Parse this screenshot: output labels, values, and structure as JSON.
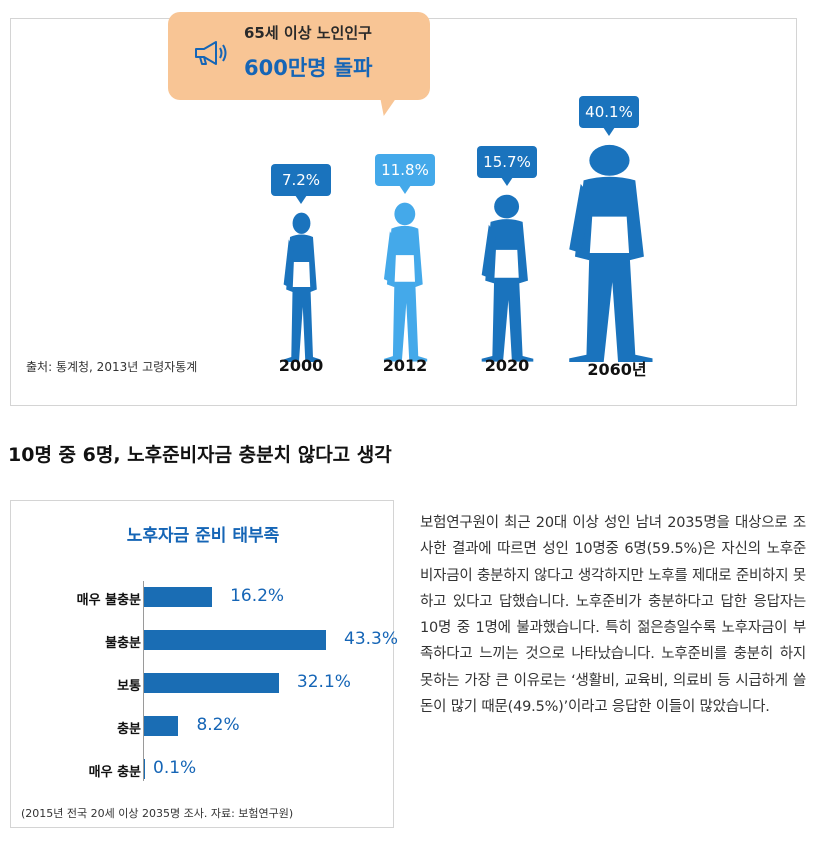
{
  "top_chart": {
    "callout": {
      "line1": "65세 이상 노인인구",
      "line2": "600만명 돌파"
    },
    "source": "출처: 통계청, 2013년 고령자통계",
    "chart_data": {
      "type": "bar",
      "categories": [
        "2000",
        "2012",
        "2020",
        "2060년"
      ],
      "values": [
        7.2,
        11.8,
        15.7,
        40.1
      ],
      "value_labels": [
        "7.2%",
        "11.8%",
        "15.7%",
        "40.1%"
      ],
      "highlight_index": 1,
      "colors": {
        "base": "#1a73bd",
        "highlight": "#44a9ea"
      }
    }
  },
  "section_title": "10명 중 6명, 노후준비자금 충분치 않다고 생각",
  "bottom_chart": {
    "chart_data": {
      "type": "bar",
      "orientation": "horizontal",
      "title": "노후자금 준비 태부족",
      "categories": [
        "매우 불충분",
        "불충분",
        "보통",
        "충분",
        "매우 충분"
      ],
      "values": [
        16.2,
        43.3,
        32.1,
        8.2,
        0.1
      ],
      "value_labels": [
        "16.2%",
        "43.3%",
        "32.1%",
        "8.2%",
        "0.1%"
      ],
      "xlim": [
        0,
        43.3
      ],
      "bar_color": "#1a6db4"
    },
    "source": "(2015년 전국 20세 이상 2035명 조사. 자료: 보험연구원)"
  },
  "paragraph": "보험연구원이 최근 20대 이상 성인 남녀 2035명을 대상으로 조사한 결과에 따르면 성인 10명중 6명(59.5%)은 자신의 노후준비자금이 충분하지 않다고 생각하지만 노후를 제대로 준비하지 못하고 있다고 답했습니다. 노후준비가 충분하다고 답한 응답자는 10명 중 1명에 불과했습니다. 특히 젊은층일수록 노후자금이 부족하다고 느끼는 것으로 나타났습니다. 노후준비를 충분히 하지 못하는 가장 큰 이유로는 ‘생활비, 교육비, 의료비 등 시급하게 쓸 돈이 많기 때문(49.5%)’이라고 응답한 이들이 많았습니다."
}
